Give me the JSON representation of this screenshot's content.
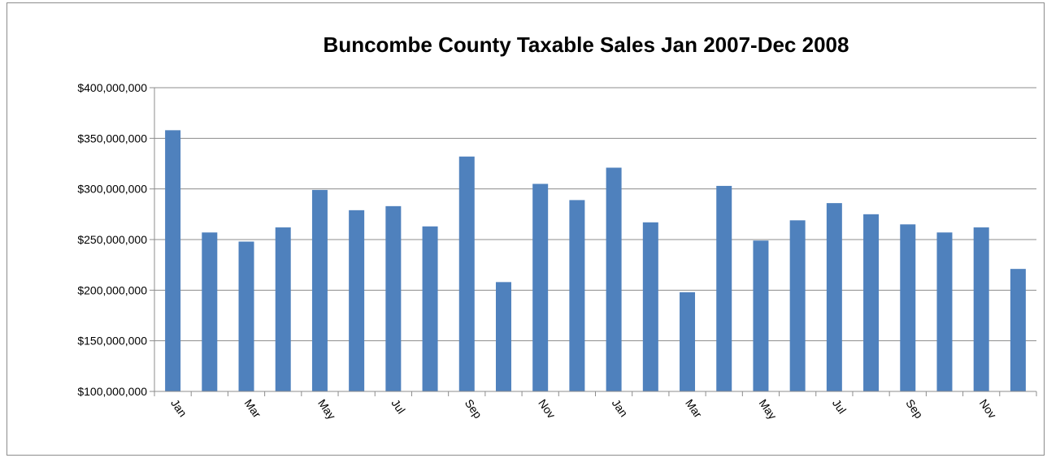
{
  "chart_data": {
    "type": "bar",
    "title": "Buncombe County Taxable Sales Jan 2007-Dec 2008",
    "xlabel": "",
    "ylabel": "",
    "ylim": [
      100000000,
      400000000
    ],
    "yticks": [
      100000000,
      150000000,
      200000000,
      250000000,
      300000000,
      350000000,
      400000000
    ],
    "ytick_labels": [
      "$100,000,000",
      "$150,000,000",
      "$200,000,000",
      "$250,000,000",
      "$300,000,000",
      "$350,000,000",
      "$400,000,000"
    ],
    "categories": [
      "Jan",
      "",
      "Mar",
      "",
      "May",
      "",
      "Jul",
      "",
      "Sep",
      "",
      "Nov",
      "",
      "Jan",
      "",
      "Mar",
      "",
      "May",
      "",
      "Jul",
      "",
      "Sep",
      "",
      "Nov",
      ""
    ],
    "values": [
      358000000,
      257000000,
      248000000,
      262000000,
      299000000,
      279000000,
      283000000,
      263000000,
      332000000,
      208000000,
      305000000,
      289000000,
      321000000,
      267000000,
      198000000,
      303000000,
      249000000,
      269000000,
      286000000,
      275000000,
      265000000,
      257000000,
      262000000,
      221000000
    ],
    "grid": true,
    "legend": "none",
    "bar_color": "#4f81bd"
  }
}
